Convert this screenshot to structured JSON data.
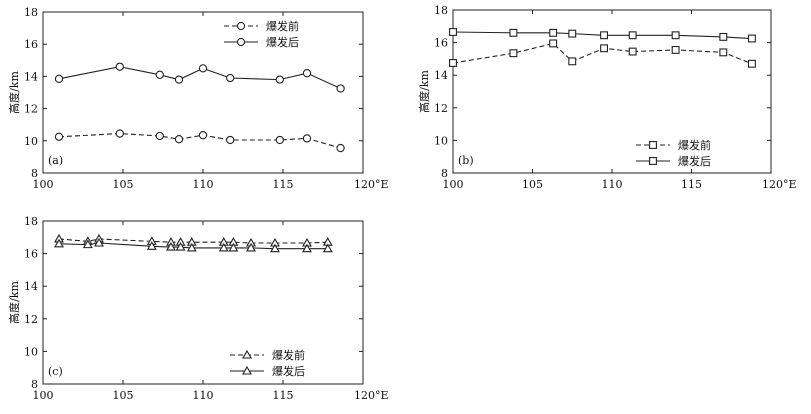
{
  "chart_data": [
    {
      "type": "line",
      "panel_label": "(a)",
      "ylabel": "高度/km",
      "x_tick_labels": [
        "100",
        "105",
        "110",
        "115",
        "120°E"
      ],
      "y_tick_labels": [
        "8",
        "10",
        "12",
        "14",
        "16",
        "18"
      ],
      "xlim": [
        100,
        120
      ],
      "ylim": [
        8,
        18
      ],
      "legend_position": "top-right",
      "series": [
        {
          "name": "爆发前",
          "line_style": "dashed",
          "marker": "circle",
          "x": [
            101.0,
            104.8,
            107.3,
            108.5,
            110.0,
            111.7,
            114.8,
            116.5,
            118.6
          ],
          "y": [
            10.25,
            10.45,
            10.3,
            10.1,
            10.35,
            10.05,
            10.05,
            10.15,
            9.55
          ]
        },
        {
          "name": "爆发后",
          "line_style": "solid",
          "marker": "circle",
          "x": [
            101.0,
            104.8,
            107.3,
            108.5,
            110.0,
            111.7,
            114.8,
            116.5,
            118.6
          ],
          "y": [
            13.85,
            14.6,
            14.1,
            13.8,
            14.5,
            13.9,
            13.8,
            14.2,
            13.25
          ]
        }
      ]
    },
    {
      "type": "line",
      "panel_label": "(b)",
      "ylabel": "高度/km",
      "x_tick_labels": [
        "100",
        "105",
        "110",
        "115",
        "120°E"
      ],
      "y_tick_labels": [
        "8",
        "10",
        "12",
        "14",
        "16",
        "18"
      ],
      "xlim": [
        100,
        120
      ],
      "ylim": [
        8,
        18
      ],
      "legend_position": "bottom-right",
      "series": [
        {
          "name": "爆发前",
          "line_style": "dashed",
          "marker": "square",
          "x": [
            100.0,
            103.8,
            106.3,
            107.5,
            109.5,
            111.3,
            114.0,
            117.0,
            118.8
          ],
          "y": [
            14.75,
            15.35,
            15.95,
            14.85,
            15.65,
            15.45,
            15.55,
            15.4,
            14.7
          ]
        },
        {
          "name": "爆发后",
          "line_style": "solid",
          "marker": "square",
          "x": [
            100.0,
            103.8,
            106.3,
            107.5,
            109.5,
            111.3,
            114.0,
            117.0,
            118.8
          ],
          "y": [
            16.65,
            16.6,
            16.6,
            16.55,
            16.45,
            16.45,
            16.45,
            16.35,
            16.25
          ]
        }
      ]
    },
    {
      "type": "line",
      "panel_label": "(c)",
      "ylabel": "高度/km",
      "x_tick_labels": [
        "100",
        "105",
        "110",
        "115",
        "120°E"
      ],
      "y_tick_labels": [
        "8",
        "10",
        "12",
        "14",
        "16",
        "18"
      ],
      "xlim": [
        100,
        120
      ],
      "ylim": [
        8,
        18
      ],
      "legend_position": "bottom-right",
      "series": [
        {
          "name": "爆发前",
          "line_style": "dashed",
          "marker": "triangle",
          "x": [
            101.0,
            102.8,
            103.5,
            106.8,
            108.0,
            108.6,
            109.3,
            111.3,
            111.9,
            113.0,
            114.5,
            116.5,
            117.8
          ],
          "y": [
            16.9,
            16.75,
            16.9,
            16.75,
            16.7,
            16.7,
            16.7,
            16.7,
            16.7,
            16.65,
            16.65,
            16.65,
            16.7
          ]
        },
        {
          "name": "爆发后",
          "line_style": "solid",
          "marker": "triangle",
          "x": [
            101.0,
            102.8,
            103.5,
            106.8,
            108.0,
            108.6,
            109.3,
            111.3,
            111.9,
            113.0,
            114.5,
            116.5,
            117.8
          ],
          "y": [
            16.6,
            16.55,
            16.65,
            16.45,
            16.4,
            16.4,
            16.35,
            16.35,
            16.35,
            16.35,
            16.3,
            16.3,
            16.3
          ]
        }
      ]
    }
  ]
}
